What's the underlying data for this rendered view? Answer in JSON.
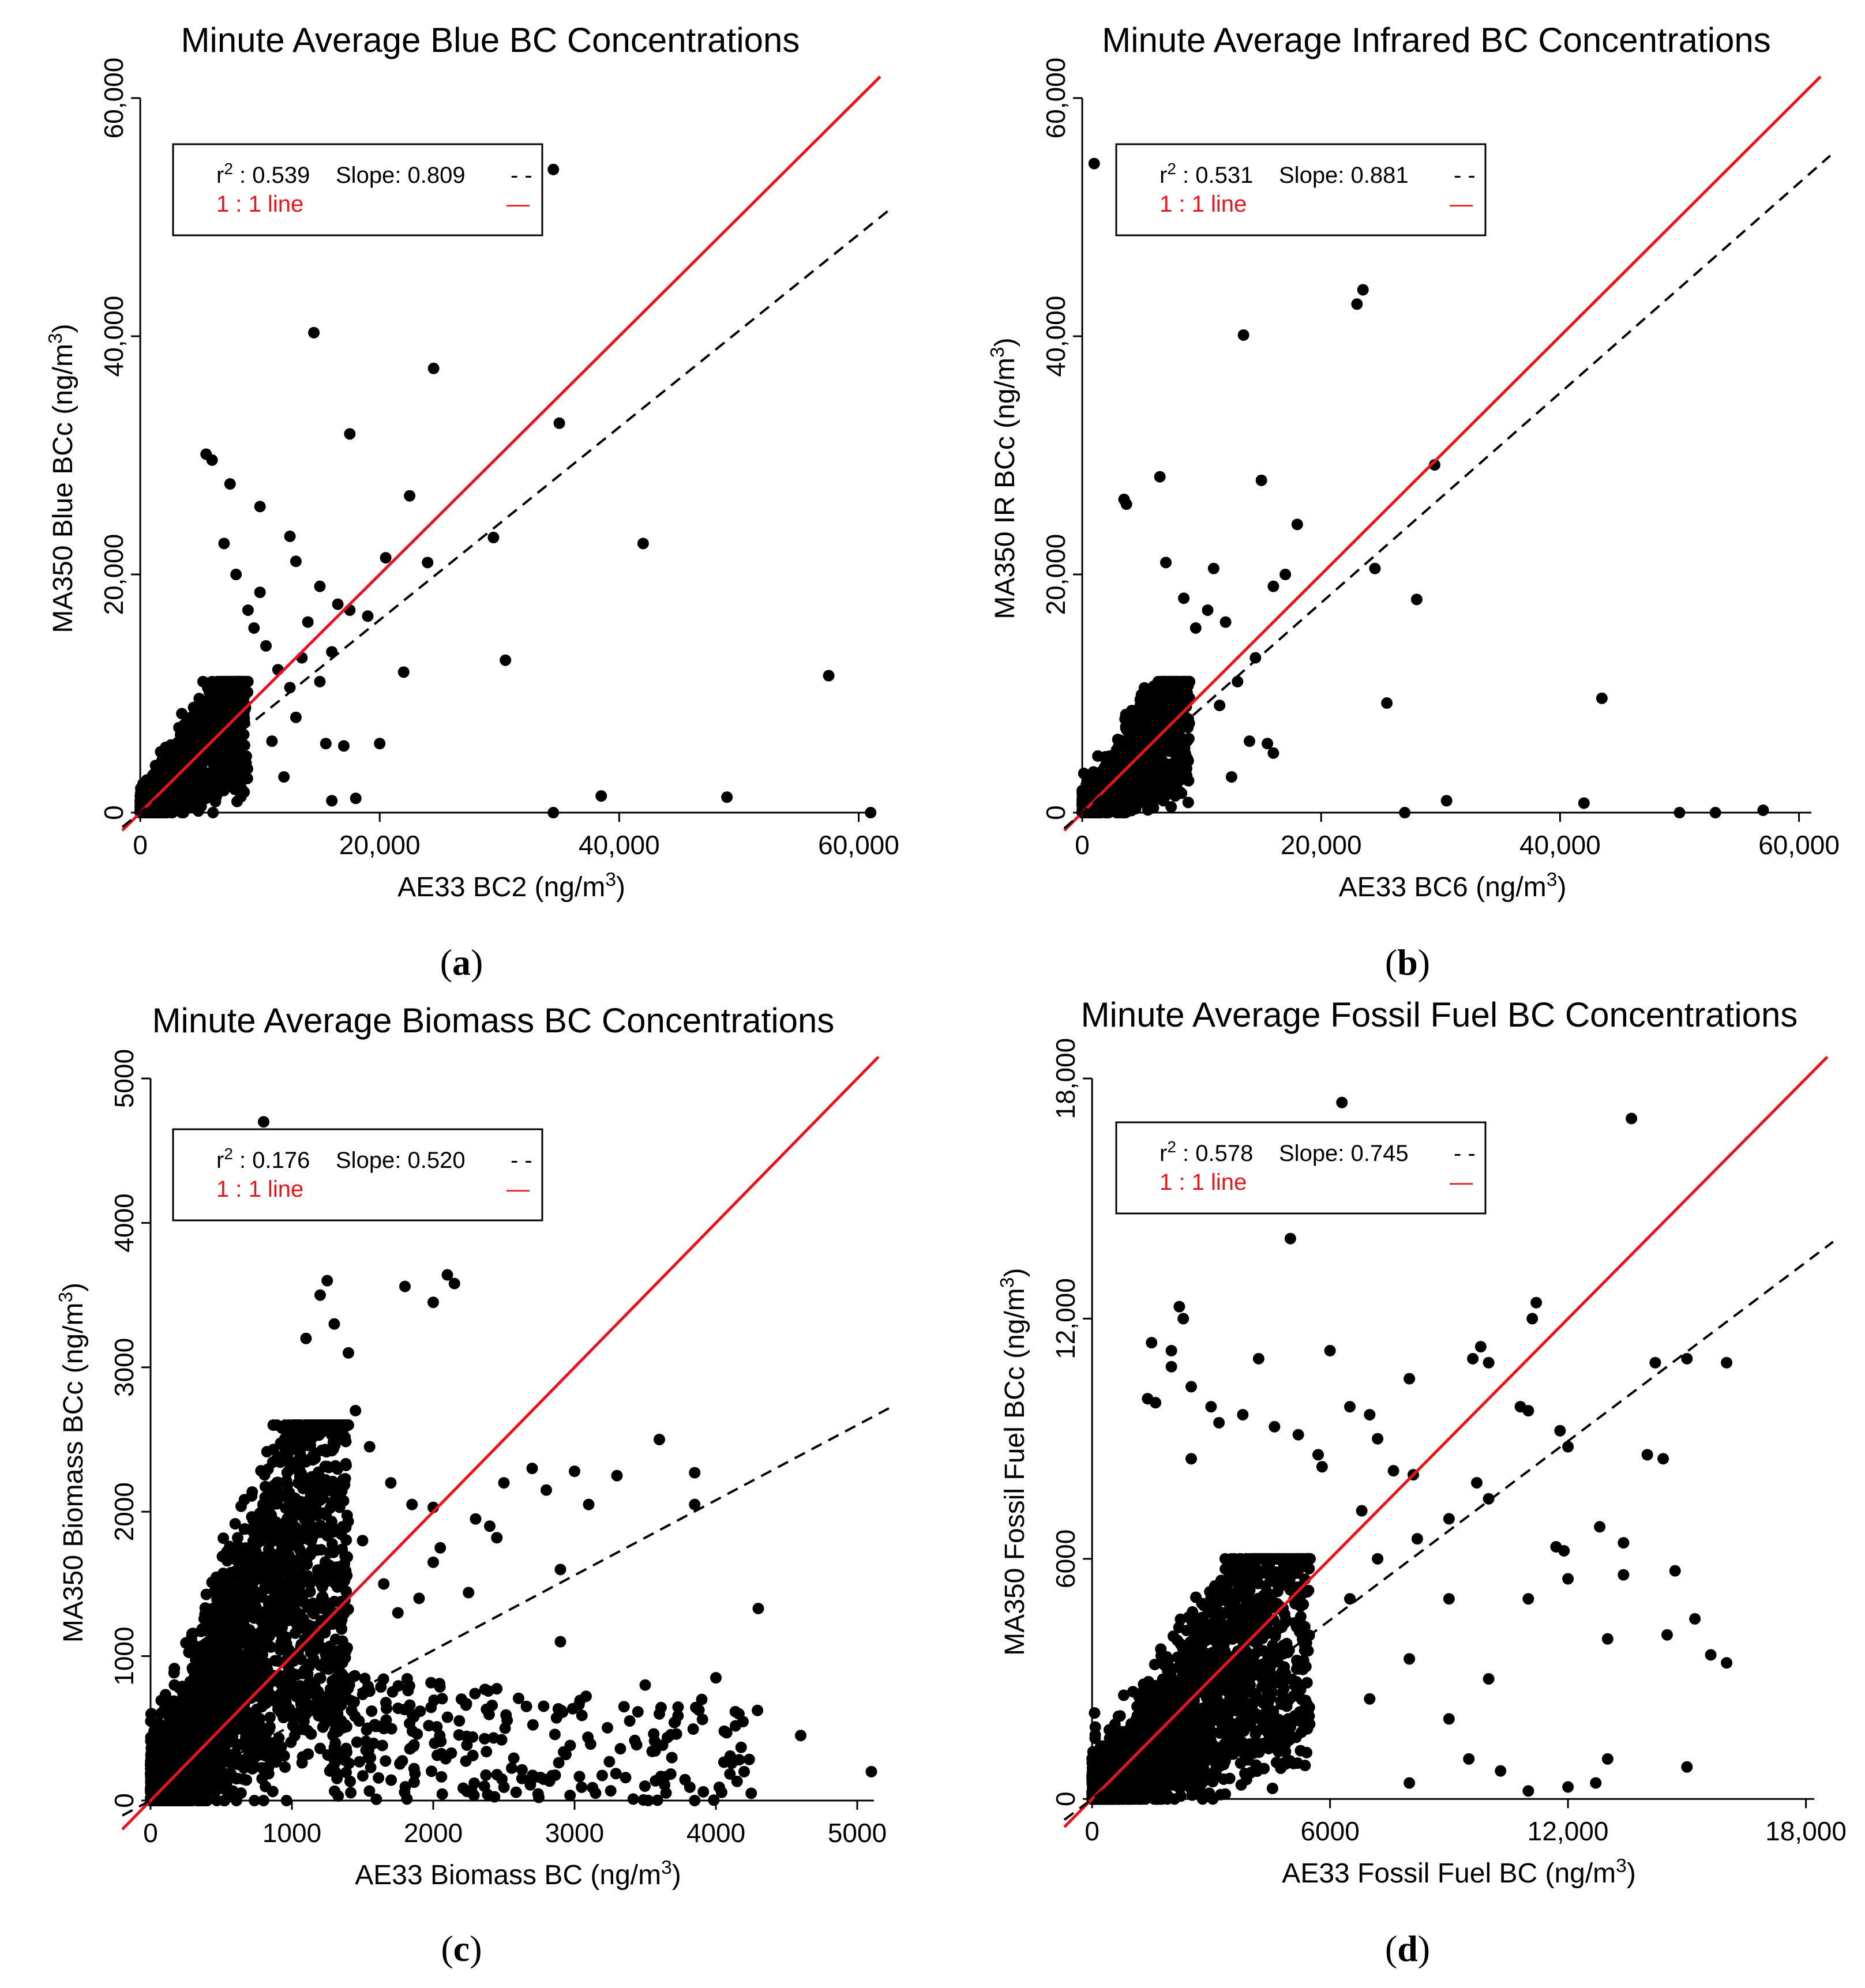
{
  "colors": {
    "points": "#000000",
    "identity_line": "#e8141b",
    "fit_line": "#000000",
    "axis": "#000000"
  },
  "chart_data": [
    {
      "panel": "a",
      "caption_letter": "a",
      "type": "scatter",
      "title": "Minute Average Blue BC Concentrations",
      "xlabel": "AE33 BC2 (ng/m",
      "ylabel": "MA350 Blue BCc (ng/m",
      "label_sup": "3",
      "label_close": ")",
      "xlim": [
        -1500,
        62000
      ],
      "ylim": [
        -1500,
        60000
      ],
      "xticks": [
        0,
        20000,
        40000,
        60000
      ],
      "yticks": [
        0,
        20000,
        40000,
        60000
      ],
      "xtick_labels": [
        "0",
        "20,000",
        "40,000",
        "60,000"
      ],
      "ytick_labels": [
        "0",
        "20,000",
        "40,000",
        "60,000"
      ],
      "fit_slope": 0.809,
      "identity_line": true,
      "legend": {
        "r2_label": "r",
        "r2_sup": "2",
        "r2_text": ": 0.539",
        "slope_text": "Slope:  0.809",
        "fit_symbol": "- -",
        "identity_text": "1 : 1 line",
        "identity_symbol": "—",
        "position": "top-left"
      },
      "cluster": {
        "x_max": 9000,
        "y_max": 11000,
        "count": 1400
      },
      "points": [
        [
          34500,
          54000
        ],
        [
          14500,
          40300
        ],
        [
          24500,
          37300
        ],
        [
          17500,
          31800
        ],
        [
          35000,
          32700
        ],
        [
          6000,
          29600
        ],
        [
          5500,
          30100
        ],
        [
          7500,
          27600
        ],
        [
          22500,
          26600
        ],
        [
          10000,
          25700
        ],
        [
          12500,
          23200
        ],
        [
          29500,
          23100
        ],
        [
          42000,
          22600
        ],
        [
          7000,
          22600
        ],
        [
          20500,
          21400
        ],
        [
          24000,
          21000
        ],
        [
          13000,
          21100
        ],
        [
          8000,
          20000
        ],
        [
          15000,
          19000
        ],
        [
          16500,
          17500
        ],
        [
          17500,
          17000
        ],
        [
          19000,
          16500
        ],
        [
          14000,
          16000
        ],
        [
          22000,
          11800
        ],
        [
          30500,
          12800
        ],
        [
          57500,
          11500
        ],
        [
          20000,
          5800
        ],
        [
          15500,
          5800
        ],
        [
          17000,
          5600
        ],
        [
          38500,
          1400
        ],
        [
          49000,
          1300
        ],
        [
          61000,
          0
        ],
        [
          34500,
          0
        ],
        [
          16000,
          1000
        ],
        [
          18000,
          1200
        ],
        [
          12000,
          3000
        ],
        [
          11000,
          6000
        ],
        [
          13000,
          8000
        ],
        [
          12500,
          10500
        ],
        [
          11500,
          12000
        ],
        [
          10500,
          14000
        ],
        [
          9500,
          15500
        ],
        [
          13500,
          13000
        ],
        [
          15000,
          11000
        ],
        [
          16000,
          13500
        ],
        [
          9000,
          17000
        ],
        [
          10000,
          18500
        ]
      ]
    },
    {
      "panel": "b",
      "caption_letter": "b",
      "type": "scatter",
      "title": "Minute Average Infrared BC Concentrations",
      "xlabel": "AE33 BC6 (ng/m",
      "ylabel": "MA350 IR BCc (ng/m",
      "label_sup": "3",
      "label_close": ")",
      "xlim": [
        -1500,
        62000
      ],
      "ylim": [
        -1500,
        60000
      ],
      "xticks": [
        0,
        20000,
        40000,
        60000
      ],
      "yticks": [
        0,
        20000,
        40000,
        60000
      ],
      "xtick_labels": [
        "0",
        "20,000",
        "40,000",
        "60,000"
      ],
      "ytick_labels": [
        "0",
        "20,000",
        "40,000",
        "60,000"
      ],
      "fit_slope": 0.881,
      "identity_line": true,
      "legend": {
        "r2_label": "r",
        "r2_sup": "2",
        "r2_text": ": 0.531",
        "slope_text": "Slope:  0.881",
        "fit_symbol": "- -",
        "identity_text": "1 : 1 line",
        "identity_symbol": "—",
        "position": "top-left"
      },
      "cluster": {
        "x_max": 9000,
        "y_max": 11000,
        "count": 1300
      },
      "points": [
        [
          1000,
          54500
        ],
        [
          23500,
          43900
        ],
        [
          23000,
          42700
        ],
        [
          13500,
          40100
        ],
        [
          29500,
          29200
        ],
        [
          3500,
          26300
        ],
        [
          3700,
          25900
        ],
        [
          6500,
          28200
        ],
        [
          15000,
          27900
        ],
        [
          18000,
          24200
        ],
        [
          7000,
          21000
        ],
        [
          24500,
          20500
        ],
        [
          28000,
          17900
        ],
        [
          25500,
          9200
        ],
        [
          43500,
          9600
        ],
        [
          27000,
          0
        ],
        [
          30500,
          1000
        ],
        [
          42000,
          800
        ],
        [
          50000,
          0
        ],
        [
          53000,
          0
        ],
        [
          57000,
          200
        ],
        [
          16000,
          5000
        ],
        [
          15500,
          5800
        ],
        [
          14500,
          13000
        ],
        [
          12000,
          16000
        ],
        [
          10500,
          17000
        ],
        [
          9500,
          15500
        ],
        [
          8500,
          18000
        ],
        [
          11000,
          20500
        ],
        [
          17000,
          20000
        ],
        [
          16000,
          19000
        ],
        [
          13000,
          11000
        ],
        [
          11500,
          9000
        ],
        [
          12500,
          3000
        ],
        [
          14000,
          6000
        ]
      ]
    },
    {
      "panel": "c",
      "caption_letter": "c",
      "type": "scatter",
      "title": "Minute Average Biomass BC Concentrations",
      "xlabel": "AE33 Biomass BC (ng/m",
      "ylabel": "MA350 Biomass BCc (ng/m",
      "label_sup": "3",
      "label_close": ")",
      "xlim": [
        -200,
        5200
      ],
      "ylim": [
        -100,
        5000
      ],
      "xticks": [
        0,
        1000,
        2000,
        3000,
        4000,
        5000
      ],
      "yticks": [
        0,
        1000,
        2000,
        3000,
        4000,
        5000
      ],
      "xtick_labels": [
        "0",
        "1000",
        "2000",
        "3000",
        "4000",
        "5000"
      ],
      "ytick_labels": [
        "0",
        "1000",
        "2000",
        "3000",
        "4000",
        "5000"
      ],
      "fit_slope": 0.52,
      "identity_line": true,
      "legend": {
        "r2_label": "r",
        "r2_sup": "2",
        "r2_text": ": 0.176",
        "slope_text": "Slope:  0.520",
        "fit_symbol": "- -",
        "identity_text": "1 : 1 line",
        "identity_symbol": "—",
        "position": "top-left"
      },
      "cluster": {
        "x_max": 1400,
        "y_max": 2600,
        "count": 2600
      },
      "tail": {
        "x_min": 1300,
        "x_max": 4300,
        "y_min": 0,
        "y_max": 900,
        "count": 260
      },
      "points": [
        [
          800,
          4700
        ],
        [
          250,
          4270
        ],
        [
          1250,
          3600
        ],
        [
          1800,
          3560
        ],
        [
          2100,
          3640
        ],
        [
          2150,
          3580
        ],
        [
          2000,
          3450
        ],
        [
          3600,
          2500
        ],
        [
          3000,
          2280
        ],
        [
          3850,
          2270
        ],
        [
          2700,
          2300
        ],
        [
          3300,
          2250
        ],
        [
          3850,
          2050
        ],
        [
          2500,
          2200
        ],
        [
          2800,
          2150
        ],
        [
          3100,
          2050
        ],
        [
          2300,
          1950
        ],
        [
          2400,
          1900
        ],
        [
          2450,
          1820
        ],
        [
          2050,
          1750
        ],
        [
          2000,
          1650
        ],
        [
          2250,
          1440
        ],
        [
          4300,
          1330
        ],
        [
          2900,
          1600
        ],
        [
          1850,
          2050
        ],
        [
          2000,
          2030
        ],
        [
          1700,
          2200
        ],
        [
          1550,
          2450
        ],
        [
          1450,
          2700
        ],
        [
          1400,
          3100
        ],
        [
          1300,
          3300
        ],
        [
          1200,
          3500
        ],
        [
          1100,
          3200
        ],
        [
          1500,
          1800
        ],
        [
          1650,
          1500
        ],
        [
          1750,
          1300
        ],
        [
          4600,
          450
        ],
        [
          5100,
          200
        ],
        [
          4250,
          50
        ],
        [
          3850,
          0
        ],
        [
          4200,
          200
        ],
        [
          3600,
          600
        ],
        [
          3500,
          800
        ],
        [
          3350,
          650
        ],
        [
          3900,
          700
        ],
        [
          4000,
          850
        ],
        [
          2900,
          1100
        ],
        [
          1900,
          1400
        ]
      ]
    },
    {
      "panel": "d",
      "caption_letter": "d",
      "type": "scatter",
      "title": "Minute Average Fossil Fuel BC Concentrations",
      "xlabel": "AE33 Fossil Fuel BC (ng/m",
      "ylabel": "MA350 Fossil Fuel BCc (ng/m",
      "label_sup": "3",
      "label_close": ")",
      "xlim": [
        -700,
        18500
      ],
      "ylim": [
        -400,
        18000
      ],
      "xticks": [
        0,
        6000,
        12000,
        18000
      ],
      "yticks": [
        0,
        6000,
        12000,
        18000
      ],
      "xtick_labels": [
        "0",
        "6000",
        "12,000",
        "18,000"
      ],
      "ytick_labels": [
        "0",
        "6000",
        "12,000",
        "18,000"
      ],
      "fit_slope": 0.745,
      "identity_line": true,
      "legend": {
        "r2_label": "r",
        "r2_sup": "2",
        "r2_text": ": 0.578",
        "slope_text": "Slope:  0.745",
        "fit_symbol": "- -",
        "identity_text": "1 : 1 line",
        "identity_symbol": "—",
        "position": "top-left"
      },
      "cluster": {
        "x_max": 5500,
        "y_max": 6000,
        "count": 2200
      },
      "points": [
        [
          6300,
          17400
        ],
        [
          13600,
          17000
        ],
        [
          5000,
          14000
        ],
        [
          11200,
          12400
        ],
        [
          11100,
          12000
        ],
        [
          2200,
          12300
        ],
        [
          2300,
          12000
        ],
        [
          4200,
          11000
        ],
        [
          6000,
          11200
        ],
        [
          9800,
          11300
        ],
        [
          10000,
          10900
        ],
        [
          9600,
          11000
        ],
        [
          1500,
          11400
        ],
        [
          2000,
          11200
        ],
        [
          2000,
          10800
        ],
        [
          15000,
          11000
        ],
        [
          16000,
          10900
        ],
        [
          14200,
          10900
        ],
        [
          8000,
          10500
        ],
        [
          2500,
          10300
        ],
        [
          3000,
          9800
        ],
        [
          6500,
          9800
        ],
        [
          7000,
          9600
        ],
        [
          10800,
          9800
        ],
        [
          11000,
          9700
        ],
        [
          12000,
          8800
        ],
        [
          14000,
          8600
        ],
        [
          14400,
          8500
        ],
        [
          1600,
          9900
        ],
        [
          1400,
          10000
        ],
        [
          2500,
          8500
        ],
        [
          5700,
          8600
        ],
        [
          5800,
          8300
        ],
        [
          7200,
          9000
        ],
        [
          7600,
          8200
        ],
        [
          8100,
          8100
        ],
        [
          9700,
          7900
        ],
        [
          10000,
          7500
        ],
        [
          11700,
          6300
        ],
        [
          11900,
          6200
        ],
        [
          12800,
          6800
        ],
        [
          13400,
          6400
        ],
        [
          14500,
          4100
        ],
        [
          15600,
          3600
        ],
        [
          16000,
          3400
        ],
        [
          15200,
          4500
        ],
        [
          14700,
          5700
        ],
        [
          13400,
          5600
        ],
        [
          12000,
          5500
        ],
        [
          13000,
          4000
        ],
        [
          11000,
          5000
        ],
        [
          9000,
          5000
        ],
        [
          15000,
          800
        ],
        [
          8000,
          400
        ],
        [
          9500,
          1000
        ],
        [
          10300,
          700
        ],
        [
          11000,
          200
        ],
        [
          12000,
          300
        ],
        [
          12700,
          400
        ],
        [
          13000,
          1000
        ],
        [
          7000,
          2500
        ],
        [
          8000,
          3500
        ],
        [
          9000,
          2000
        ],
        [
          10000,
          3000
        ],
        [
          6500,
          5000
        ],
        [
          7200,
          6000
        ],
        [
          8200,
          6500
        ],
        [
          9000,
          7000
        ],
        [
          6800,
          7200
        ],
        [
          11800,
          9200
        ],
        [
          4600,
          9300
        ],
        [
          5200,
          9100
        ],
        [
          3200,
          9400
        ],
        [
          3800,
          9600
        ]
      ]
    }
  ]
}
